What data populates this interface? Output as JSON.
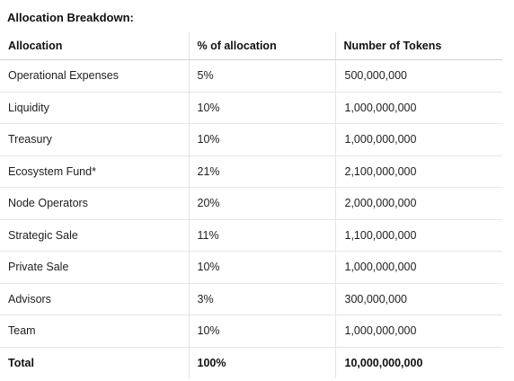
{
  "heading": "Allocation Breakdown:",
  "table": {
    "headers": [
      "Allocation",
      "% of allocation",
      "Number of Tokens"
    ],
    "rows": [
      [
        "Operational Expenses",
        "5%",
        "500,000,000"
      ],
      [
        "Liquidity",
        "10%",
        "1,000,000,000"
      ],
      [
        "Treasury",
        "10%",
        "1,000,000,000"
      ],
      [
        "Ecosystem Fund*",
        "21%",
        "2,100,000,000"
      ],
      [
        "Node Operators",
        "20%",
        "2,000,000,000"
      ],
      [
        "Strategic Sale",
        "11%",
        "1,100,000,000"
      ],
      [
        "Private Sale",
        "10%",
        "1,000,000,000"
      ],
      [
        "Advisors",
        "3%",
        "300,000,000"
      ],
      [
        "Team",
        "10%",
        "1,000,000,000"
      ]
    ],
    "total": [
      "Total",
      "100%",
      "10,000,000,000"
    ]
  }
}
